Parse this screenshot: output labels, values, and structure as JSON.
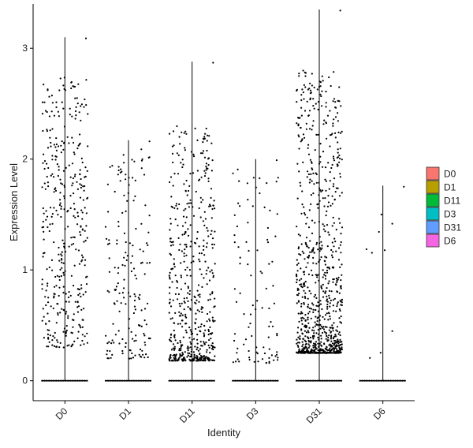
{
  "chart_data": {
    "type": "violin",
    "title": "",
    "xlabel": "Identity",
    "ylabel": "Expression Level",
    "ylim": [
      -0.18,
      3.4
    ],
    "y_ticks": [
      0,
      1,
      2,
      3
    ],
    "categories": [
      "D0",
      "D1",
      "D11",
      "D3",
      "D31",
      "D6"
    ],
    "series": [
      {
        "category": "D0",
        "max": 3.1,
        "zero_count": 900,
        "nonzero_count": 390,
        "nonzero_range": [
          0.3,
          2.75
        ],
        "color": "#F8766D"
      },
      {
        "category": "D1",
        "max": 2.17,
        "zero_count": 900,
        "nonzero_count": 170,
        "nonzero_range": [
          0.2,
          2.1
        ],
        "color": "#B79F00"
      },
      {
        "category": "D11",
        "max": 2.88,
        "zero_count": 900,
        "nonzero_count": 540,
        "nonzero_range": [
          0.18,
          2.3
        ],
        "color": "#00BA38"
      },
      {
        "category": "D3",
        "max": 2.0,
        "zero_count": 900,
        "nonzero_count": 95,
        "nonzero_range": [
          0.16,
          1.95
        ],
        "color": "#00BFC4"
      },
      {
        "category": "D31",
        "max": 3.35,
        "zero_count": 900,
        "nonzero_count": 880,
        "nonzero_range": [
          0.25,
          2.8
        ],
        "color": "#619CFF"
      },
      {
        "category": "D6",
        "max": 1.76,
        "zero_count": 900,
        "nonzero_count": 9,
        "nonzero_range": [
          0.2,
          1.6
        ],
        "color": "#F564E3"
      }
    ],
    "legend": {
      "placement": "right",
      "entries": [
        {
          "label": "D0",
          "color": "#F8766D"
        },
        {
          "label": "D1",
          "color": "#B79F00"
        },
        {
          "label": "D11",
          "color": "#00BA38"
        },
        {
          "label": "D3",
          "color": "#00BFC4"
        },
        {
          "label": "D31",
          "color": "#619CFF"
        },
        {
          "label": "D6",
          "color": "#F564E3"
        }
      ]
    },
    "grid": false,
    "x_tick_rotation": "45-degree"
  }
}
